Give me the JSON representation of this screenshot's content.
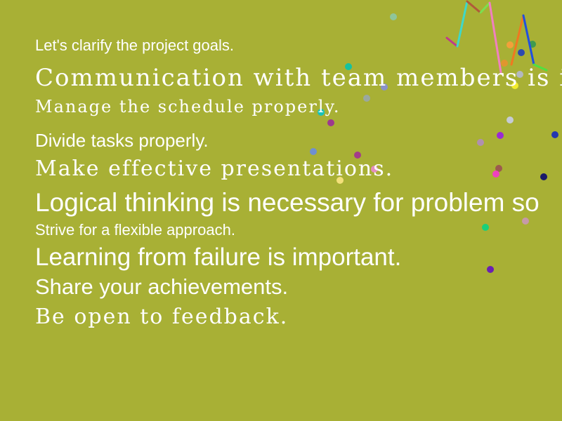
{
  "background_color": "#a8b035",
  "text_color": "#ffffff",
  "lines": [
    "Let's clarify the project goals.",
    "Communication with team members is imp",
    "Manage the schedule properly.",
    "Divide tasks properly.",
    "Make effective presentations.",
    "Logical thinking is necessary for problem so",
    "Strive for a flexible approach.",
    "Learning from failure is important.",
    "Share your achievements.",
    "Be open to feedback."
  ],
  "dots": [
    {
      "color": "#8fc59a"
    },
    {
      "color": "#15c2a0"
    },
    {
      "color": "#8a92c8"
    },
    {
      "color": "#9aa8a0"
    },
    {
      "color": "#18c2b8"
    },
    {
      "color": "#9d3a8e"
    },
    {
      "color": "#6f8fd0"
    },
    {
      "color": "#a33d8a"
    },
    {
      "color": "#e48fbf"
    },
    {
      "color": "#f3e07a"
    },
    {
      "color": "#f2a03a"
    },
    {
      "color": "#3f9a4f"
    },
    {
      "color": "#2c4ab0"
    },
    {
      "color": "#e0962e"
    },
    {
      "color": "#b3b8c0"
    },
    {
      "color": "#f2ec2b"
    },
    {
      "color": "#c5cbd6"
    },
    {
      "color": "#b090b0"
    },
    {
      "color": "#9a2ad4"
    },
    {
      "color": "#2436b0"
    },
    {
      "color": "#9c5a4e"
    },
    {
      "color": "#f040c0"
    },
    {
      "color": "#1a1a6a"
    },
    {
      "color": "#19d07a"
    },
    {
      "color": "#c69aa8"
    },
    {
      "color": "#6a20b0"
    }
  ],
  "strokes": [
    {
      "color": "#c03a8a"
    },
    {
      "color": "#3fd8c8"
    },
    {
      "color": "#b05a3a"
    },
    {
      "color": "#7ae050"
    },
    {
      "color": "#f080c0"
    },
    {
      "color": "#f07820"
    },
    {
      "color": "#2050e0"
    },
    {
      "color": "#50e040"
    }
  ]
}
